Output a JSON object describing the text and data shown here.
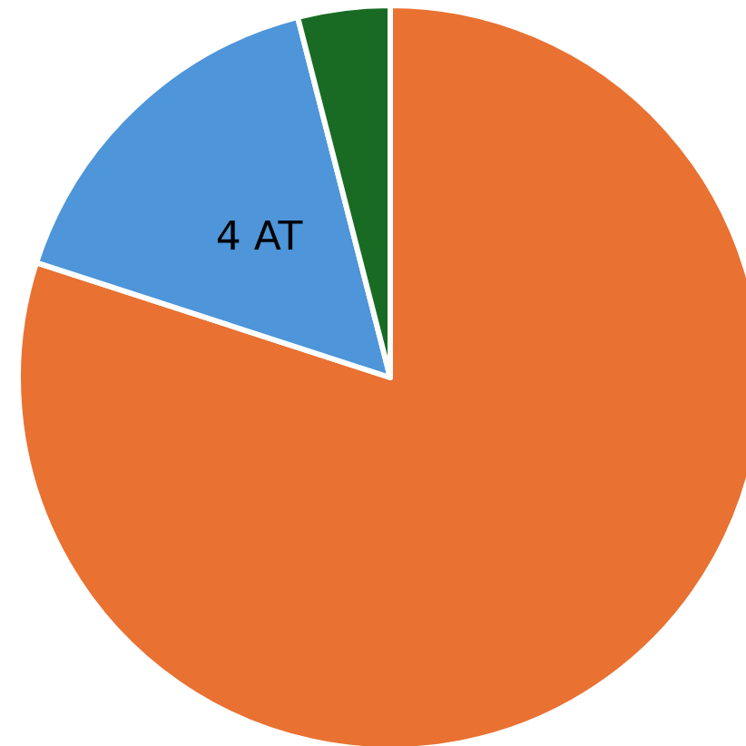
{
  "chart_data": {
    "type": "pie",
    "categories": [
      null,
      "4 AT",
      null
    ],
    "values": [
      80,
      16,
      4
    ],
    "colors": [
      "#e97132",
      "#4e95d9",
      "#196b24"
    ],
    "legend": false
  }
}
